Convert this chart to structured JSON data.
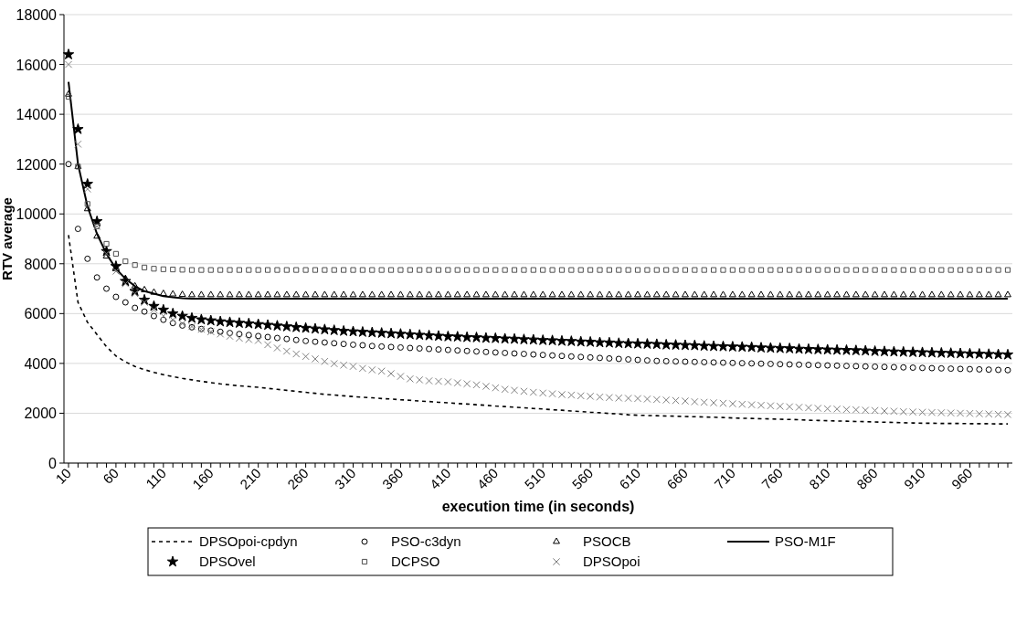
{
  "chart_data": {
    "type": "line",
    "xlabel": "execution time (in seconds)",
    "ylabel": "RTV average",
    "categories": [
      "10",
      null,
      null,
      null,
      null,
      "60",
      null,
      null,
      null,
      null,
      "110",
      null,
      null,
      null,
      null,
      "160",
      null,
      null,
      null,
      null,
      "210",
      null,
      null,
      null,
      null,
      "260",
      null,
      null,
      null,
      null,
      "310",
      null,
      null,
      null,
      null,
      "360",
      null,
      null,
      null,
      null,
      "410",
      null,
      null,
      null,
      null,
      "460",
      null,
      null,
      null,
      null,
      "510",
      null,
      null,
      null,
      null,
      "560",
      null,
      null,
      null,
      null,
      "610",
      null,
      null,
      null,
      null,
      "660",
      null,
      null,
      null,
      null,
      "710",
      null,
      null,
      null,
      null,
      "760",
      null,
      null,
      null,
      null,
      "810",
      null,
      null,
      null,
      null,
      "860",
      null,
      null,
      null,
      null,
      "910",
      null,
      null,
      null,
      null,
      "960",
      null,
      null,
      null,
      null
    ],
    "ylim": [
      0,
      18000
    ],
    "yticks": [
      0,
      2000,
      4000,
      6000,
      8000,
      10000,
      12000,
      14000,
      16000,
      18000
    ],
    "grid": "y",
    "legend": "bottom",
    "series": [
      {
        "name": "DPSOpoi-cpdyn",
        "color": "#000000",
        "line_style": "dashed",
        "marker": "none",
        "values": [
          9150,
          6450,
          5650,
          5160,
          4670,
          4300,
          4060,
          3880,
          3750,
          3640,
          3550,
          3470,
          3400,
          3340,
          3280,
          3230,
          3180,
          3140,
          3100,
          3070,
          3040,
          3000,
          2960,
          2920,
          2880,
          2840,
          2800,
          2760,
          2730,
          2700,
          2670,
          2640,
          2620,
          2590,
          2570,
          2540,
          2520,
          2490,
          2470,
          2440,
          2420,
          2390,
          2370,
          2340,
          2320,
          2290,
          2270,
          2240,
          2220,
          2190,
          2170,
          2140,
          2120,
          2090,
          2070,
          2040,
          2020,
          1990,
          1970,
          1940,
          1920,
          1910,
          1900,
          1890,
          1880,
          1870,
          1860,
          1850,
          1840,
          1830,
          1810,
          1800,
          1790,
          1780,
          1770,
          1760,
          1750,
          1740,
          1720,
          1710,
          1700,
          1690,
          1680,
          1670,
          1660,
          1650,
          1640,
          1630,
          1620,
          1610,
          1600,
          1600,
          1590,
          1590,
          1590,
          1580,
          1580,
          1580,
          1570,
          1570
        ]
      },
      {
        "name": "PSO-c3dyn",
        "type": "scatter",
        "color": "#000000",
        "marker": "circle",
        "values": [
          12000,
          9400,
          8200,
          7450,
          7000,
          6670,
          6450,
          6230,
          6080,
          5900,
          5750,
          5620,
          5520,
          5450,
          5380,
          5320,
          5270,
          5220,
          5180,
          5140,
          5100,
          5060,
          5020,
          4980,
          4940,
          4900,
          4870,
          4840,
          4810,
          4780,
          4750,
          4730,
          4700,
          4680,
          4660,
          4640,
          4620,
          4600,
          4580,
          4560,
          4540,
          4520,
          4500,
          4480,
          4460,
          4440,
          4420,
          4400,
          4380,
          4360,
          4340,
          4320,
          4300,
          4280,
          4260,
          4240,
          4220,
          4200,
          4180,
          4160,
          4140,
          4120,
          4100,
          4090,
          4080,
          4070,
          4060,
          4050,
          4040,
          4030,
          4020,
          4010,
          4000,
          3990,
          3980,
          3970,
          3960,
          3950,
          3940,
          3930,
          3920,
          3910,
          3900,
          3890,
          3880,
          3870,
          3860,
          3850,
          3840,
          3830,
          3820,
          3810,
          3800,
          3790,
          3780,
          3770,
          3760,
          3750,
          3740,
          3730
        ]
      },
      {
        "name": "PSOCB",
        "type": "scatter",
        "color": "#000000",
        "marker": "triangle",
        "values": [
          14800,
          11900,
          10200,
          9100,
          8300,
          7800,
          7400,
          7100,
          6950,
          6850,
          6800,
          6780,
          6760,
          6750,
          6750,
          6750,
          6750,
          6750,
          6750,
          6750,
          6750,
          6750,
          6750,
          6750,
          6750,
          6750,
          6750,
          6750,
          6750,
          6750,
          6750,
          6750,
          6750,
          6750,
          6750,
          6750,
          6750,
          6750,
          6750,
          6750,
          6750,
          6750,
          6750,
          6750,
          6750,
          6750,
          6750,
          6750,
          6750,
          6750,
          6750,
          6750,
          6750,
          6750,
          6750,
          6750,
          6750,
          6750,
          6750,
          6750,
          6750,
          6750,
          6750,
          6750,
          6750,
          6750,
          6750,
          6750,
          6750,
          6750,
          6750,
          6750,
          6750,
          6750,
          6750,
          6750,
          6750,
          6750,
          6750,
          6750,
          6750,
          6750,
          6750,
          6750,
          6750,
          6750,
          6750,
          6750,
          6750,
          6750,
          6750,
          6750,
          6750,
          6750,
          6750,
          6750,
          6750,
          6750,
          6750,
          6750
        ]
      },
      {
        "name": "PSO-M1F",
        "color": "#000000",
        "line_style": "solid",
        "marker": "none",
        "values": [
          15300,
          12000,
          10300,
          9200,
          8400,
          7800,
          7400,
          7100,
          6900,
          6800,
          6700,
          6650,
          6620,
          6600,
          6600,
          6600,
          6600,
          6600,
          6600,
          6600,
          6600,
          6600,
          6600,
          6600,
          6600,
          6600,
          6600,
          6600,
          6600,
          6600,
          6600,
          6600,
          6600,
          6600,
          6600,
          6600,
          6600,
          6600,
          6600,
          6600,
          6600,
          6600,
          6600,
          6600,
          6600,
          6600,
          6600,
          6600,
          6600,
          6600,
          6600,
          6600,
          6600,
          6600,
          6600,
          6600,
          6600,
          6600,
          6600,
          6600,
          6600,
          6600,
          6600,
          6600,
          6600,
          6600,
          6600,
          6600,
          6600,
          6600,
          6600,
          6600,
          6600,
          6600,
          6600,
          6600,
          6600,
          6600,
          6600,
          6600,
          6600,
          6600,
          6600,
          6600,
          6600,
          6600,
          6600,
          6600,
          6600,
          6600,
          6600,
          6600,
          6600,
          6600,
          6600,
          6600,
          6600,
          6600,
          6600,
          6600
        ]
      },
      {
        "name": "DPSOvel",
        "type": "scatter",
        "color": "#000000",
        "marker": "star",
        "values": [
          16400,
          13400,
          11200,
          9700,
          8500,
          7900,
          7300,
          6900,
          6550,
          6300,
          6150,
          6000,
          5900,
          5820,
          5760,
          5720,
          5680,
          5650,
          5620,
          5600,
          5570,
          5540,
          5510,
          5480,
          5450,
          5420,
          5390,
          5360,
          5330,
          5300,
          5280,
          5260,
          5240,
          5220,
          5200,
          5180,
          5160,
          5140,
          5120,
          5100,
          5080,
          5070,
          5050,
          5040,
          5020,
          5010,
          4990,
          4980,
          4960,
          4950,
          4930,
          4920,
          4900,
          4890,
          4870,
          4860,
          4840,
          4830,
          4810,
          4800,
          4790,
          4780,
          4770,
          4750,
          4740,
          4730,
          4720,
          4700,
          4690,
          4680,
          4670,
          4660,
          4650,
          4630,
          4620,
          4610,
          4600,
          4580,
          4570,
          4560,
          4550,
          4540,
          4530,
          4520,
          4510,
          4490,
          4480,
          4470,
          4460,
          4450,
          4440,
          4430,
          4420,
          4410,
          4400,
          4390,
          4380,
          4370,
          4360,
          4350
        ]
      },
      {
        "name": "DCPSO",
        "type": "scatter",
        "color": "#505050",
        "marker": "square",
        "values": [
          14700,
          11900,
          10400,
          9500,
          8800,
          8400,
          8100,
          7950,
          7850,
          7800,
          7780,
          7770,
          7760,
          7750,
          7750,
          7750,
          7750,
          7750,
          7750,
          7750,
          7750,
          7750,
          7750,
          7750,
          7750,
          7750,
          7750,
          7750,
          7750,
          7750,
          7750,
          7750,
          7750,
          7750,
          7750,
          7750,
          7750,
          7750,
          7750,
          7750,
          7750,
          7750,
          7750,
          7750,
          7750,
          7750,
          7750,
          7750,
          7750,
          7750,
          7750,
          7750,
          7750,
          7750,
          7750,
          7750,
          7750,
          7750,
          7750,
          7750,
          7750,
          7750,
          7750,
          7750,
          7750,
          7750,
          7750,
          7750,
          7750,
          7750,
          7750,
          7750,
          7750,
          7750,
          7750,
          7750,
          7750,
          7750,
          7750,
          7750,
          7750,
          7750,
          7750,
          7750,
          7750,
          7750,
          7750,
          7750,
          7750,
          7750,
          7750,
          7750,
          7750,
          7750,
          7750,
          7750,
          7750,
          7750,
          7750,
          7750
        ]
      },
      {
        "name": "DPSOpoi",
        "type": "scatter",
        "color": "#808080",
        "marker": "cross",
        "values": [
          16000,
          12800,
          11000,
          9500,
          8400,
          7700,
          7200,
          6800,
          6450,
          6150,
          5900,
          5750,
          5600,
          5480,
          5370,
          5270,
          5180,
          5090,
          5010,
          4960,
          4920,
          4750,
          4620,
          4490,
          4380,
          4280,
          4180,
          4080,
          3990,
          3930,
          3880,
          3800,
          3740,
          3690,
          3590,
          3480,
          3380,
          3340,
          3300,
          3280,
          3260,
          3220,
          3180,
          3140,
          3080,
          3020,
          2960,
          2920,
          2880,
          2840,
          2810,
          2780,
          2750,
          2730,
          2700,
          2680,
          2650,
          2630,
          2610,
          2600,
          2590,
          2570,
          2550,
          2530,
          2510,
          2490,
          2460,
          2440,
          2420,
          2400,
          2380,
          2360,
          2340,
          2320,
          2300,
          2280,
          2260,
          2240,
          2220,
          2200,
          2180,
          2170,
          2150,
          2140,
          2120,
          2110,
          2090,
          2080,
          2060,
          2050,
          2040,
          2030,
          2020,
          2010,
          2000,
          1990,
          1980,
          1970,
          1960,
          1950
        ]
      }
    ]
  }
}
